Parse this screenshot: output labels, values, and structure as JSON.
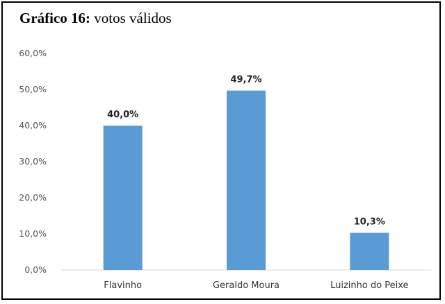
{
  "title_prefix": "Gráfico 16:",
  "title_text": " votos válidos",
  "chart_data": {
    "type": "bar",
    "title": "Gráfico 16: votos válidos",
    "categories": [
      "Flavinho",
      "Geraldo Moura",
      "Luizinho do Peixe"
    ],
    "values": [
      40.0,
      49.7,
      10.3
    ],
    "data_labels": [
      "40,0%",
      "49,7%",
      "10,3%"
    ],
    "y_ticks": [
      "0,0%",
      "10,0%",
      "20,0%",
      "30,0%",
      "40,0%",
      "50,0%",
      "60,0%"
    ],
    "ylim": [
      0,
      60
    ],
    "xlabel": "",
    "ylabel": "",
    "grid": false,
    "bar_color": "#5b9bd5"
  }
}
